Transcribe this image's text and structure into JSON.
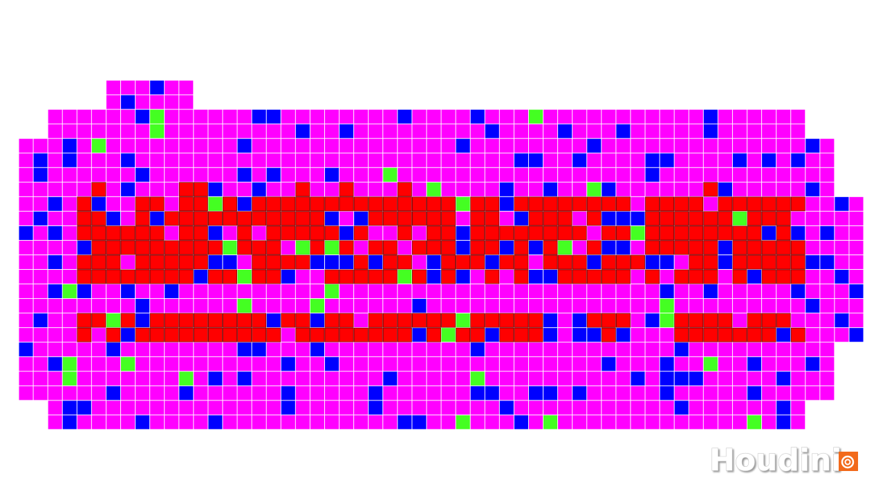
{
  "logo": {
    "text": "Houdini"
  }
}
